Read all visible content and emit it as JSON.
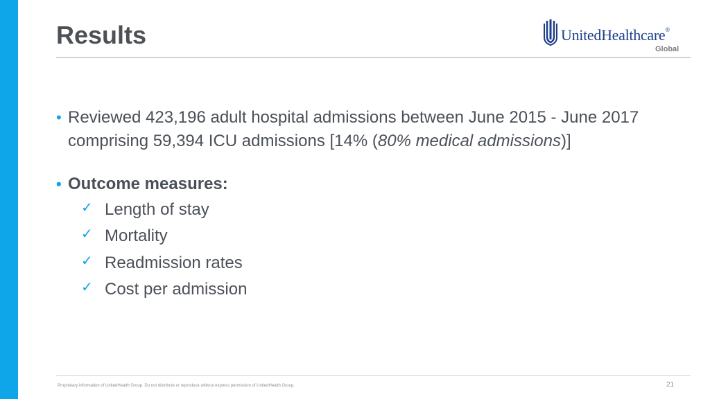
{
  "slide": {
    "title": "Results",
    "logo": {
      "wordmark": "UnitedHealthcare",
      "registered": "®",
      "subtitle": "Global",
      "icon": "uhc-shield-icon",
      "color": "#1b3f87"
    },
    "bullets": [
      {
        "text_before": "Reviewed 423,196 adult hospital admissions between June 2015 - June 2017 comprising 59,394 ICU admissions [14% (",
        "text_italic": "80% medical admissions",
        "text_after": ")]"
      },
      {
        "text": "Outcome measures:",
        "checklist": [
          "Length of stay",
          "Mortality",
          "Readmission rates",
          "Cost per admission"
        ]
      }
    ],
    "footer": "Proprietary information of UnitedHealth Group. Do not distribute or reproduce without express permission of UnitedHealth Group.",
    "page_number": "21",
    "colors": {
      "accent": "#0ea5e9",
      "title": "#4d5156",
      "body": "#4b5058"
    },
    "icons": {
      "bullet": "bullet-dot-icon",
      "check": "checkmark-icon"
    }
  }
}
